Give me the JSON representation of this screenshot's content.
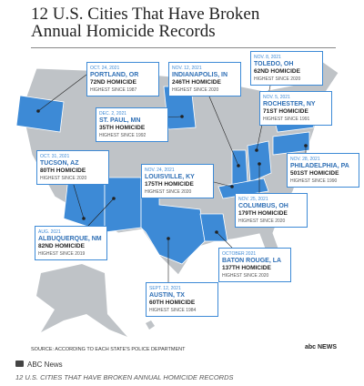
{
  "title": "12 U.S. Cities That Have Broken Annual Homicide Records",
  "cities": [
    {
      "date": "OCT. 24, 2021",
      "city": "PORTLAND, OR",
      "homicide": "72ND HOMICIDE",
      "note": "HIGHEST SINCE 1987"
    },
    {
      "date": "NOV. 12, 2021",
      "city": "INDIANAPOLIS, IN",
      "homicide": "246TH HOMICIDE",
      "note": "HIGHEST SINCE 2020"
    },
    {
      "date": "NOV. 8, 2021",
      "city": "TOLEDO, OH",
      "homicide": "62ND HOMICIDE",
      "note": "HIGHEST SINCE 2020"
    },
    {
      "date": "DEC. 2, 2021",
      "city": "ST. PAUL, MN",
      "homicide": "35TH HOMICIDE",
      "note": "HIGHEST SINCE 1992"
    },
    {
      "date": "NOV. 5, 2021",
      "city": "ROCHESTER, NY",
      "homicide": "71ST HOMICIDE",
      "note": "HIGHEST SINCE 1991"
    },
    {
      "date": "OCT. 31, 2021",
      "city": "TUCSON, AZ",
      "homicide": "80TH HOMICIDE",
      "note": "HIGHEST SINCE 2020"
    },
    {
      "date": "NOV. 24, 2021",
      "city": "LOUISVILLE, KY",
      "homicide": "175TH HOMICIDE",
      "note": "HIGHEST SINCE 2020"
    },
    {
      "date": "NOV. 28, 2021",
      "city": "PHILADELPHIA, PA",
      "homicide": "501ST HOMICIDE",
      "note": "HIGHEST SINCE 1990"
    },
    {
      "date": "NOV. 25, 2021",
      "city": "COLUMBUS, OH",
      "homicide": "179TH HOMICIDE",
      "note": "HIGHEST SINCE 2020"
    },
    {
      "date": "AUG. 2021",
      "city": "ALBUQUERQUE, NM",
      "homicide": "82ND HOMICIDE",
      "note": "HIGHEST SINCE 2019"
    },
    {
      "date": "OCTOBER 2021",
      "city": "BATON ROUGE, LA",
      "homicide": "137TH HOMICIDE",
      "note": "HIGHEST SINCE 2020"
    },
    {
      "date": "SEPT. 12, 2021",
      "city": "AUSTIN, TX",
      "homicide": "60TH HOMICIDE",
      "note": "HIGHEST SINCE 1984"
    }
  ],
  "source": "SOURCE: ACCORDING TO EACH STATE'S POLICE DEPARTMENT",
  "logo": "abc NEWS",
  "credit": "ABC News",
  "caption": "12 U.S. CITIES THAT HAVE BROKEN ANNUAL HOMICIDE RECORDS"
}
